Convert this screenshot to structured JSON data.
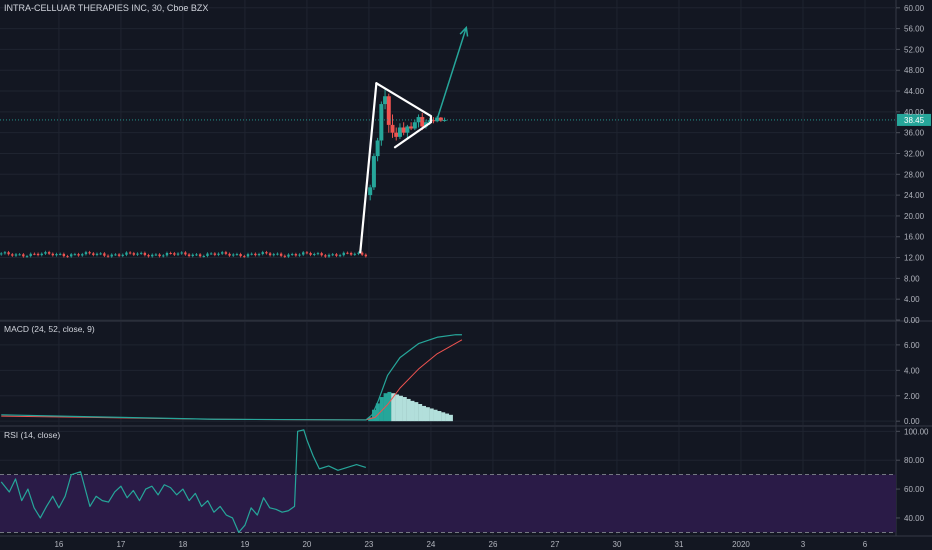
{
  "chart_data": [
    {
      "type": "line",
      "panel": "price",
      "title": "INTRA-CELLUAR THERAPIES INC, 30, Cboe BZX",
      "y_ticks": [
        "60.00",
        "56.00",
        "52.00",
        "48.00",
        "44.00",
        "40.00",
        "36.00",
        "32.00",
        "28.00",
        "24.00",
        "20.00",
        "16.00",
        "12.00",
        "8.00",
        "4.00",
        "0.00"
      ],
      "y_tick_values": [
        60,
        56,
        52,
        48,
        44,
        40,
        36,
        32,
        28,
        24,
        20,
        16,
        12,
        8,
        4,
        0
      ],
      "ylim": [
        0,
        61.5
      ],
      "x_ticks": [
        "16",
        "17",
        "18",
        "19",
        "20",
        "23",
        "24",
        "26",
        "27",
        "30",
        "31",
        "2020",
        "3",
        "6"
      ],
      "x_tick_positions": [
        0.5,
        1.5,
        2.5,
        3.5,
        4.5,
        5.5,
        6.5,
        7.5,
        8.5,
        9.5,
        10.5,
        11.5,
        12.5,
        13.5
      ],
      "xlim": [
        -0.45,
        14.0
      ],
      "last_price": 38.45,
      "last_price_label": "38.45",
      "colors": {
        "up": "#26a69a",
        "down": "#ef5350",
        "accent": "#26a69a",
        "pattern": "#ffffff"
      },
      "annotations": {
        "flagpole": [
          [
            5.36,
            13.0
          ],
          [
            5.62,
            45.5
          ]
        ],
        "pennant_upper": [
          [
            5.62,
            45.5
          ],
          [
            6.5,
            39.2
          ]
        ],
        "pennant_lower": [
          [
            5.92,
            33.2
          ],
          [
            6.5,
            38.0
          ]
        ],
        "breakout_arrow": [
          [
            6.6,
            38.6
          ],
          [
            7.07,
            56.2
          ]
        ]
      },
      "candles_pre": {
        "x_start": -0.43,
        "x_end": 5.45,
        "count": 100,
        "base": 12.6
      },
      "candles_post": [
        {
          "x": 5.52,
          "o": 24.0,
          "h": 26.0,
          "l": 23.0,
          "c": 25.5
        },
        {
          "x": 5.58,
          "o": 25.5,
          "h": 32.0,
          "l": 25.0,
          "c": 31.5
        },
        {
          "x": 5.64,
          "o": 31.5,
          "h": 35.0,
          "l": 30.5,
          "c": 34.5
        },
        {
          "x": 5.7,
          "o": 34.5,
          "h": 42.0,
          "l": 33.5,
          "c": 41.5
        },
        {
          "x": 5.76,
          "o": 41.5,
          "h": 44.5,
          "l": 40.5,
          "c": 43.0
        },
        {
          "x": 5.82,
          "o": 43.0,
          "h": 43.5,
          "l": 36.0,
          "c": 37.5
        },
        {
          "x": 5.88,
          "o": 37.5,
          "h": 39.5,
          "l": 35.0,
          "c": 36.0
        },
        {
          "x": 5.94,
          "o": 36.0,
          "h": 37.0,
          "l": 34.5,
          "c": 35.2
        },
        {
          "x": 6.0,
          "o": 35.2,
          "h": 37.8,
          "l": 34.8,
          "c": 37.0
        },
        {
          "x": 6.06,
          "o": 37.0,
          "h": 38.0,
          "l": 35.5,
          "c": 36.0
        },
        {
          "x": 6.12,
          "o": 36.0,
          "h": 37.5,
          "l": 35.0,
          "c": 37.2
        },
        {
          "x": 6.18,
          "o": 37.2,
          "h": 38.0,
          "l": 36.5,
          "c": 36.8
        },
        {
          "x": 6.24,
          "o": 36.8,
          "h": 38.5,
          "l": 36.5,
          "c": 38.0
        },
        {
          "x": 6.3,
          "o": 38.0,
          "h": 39.5,
          "l": 37.0,
          "c": 39.0
        },
        {
          "x": 6.36,
          "o": 39.0,
          "h": 39.8,
          "l": 36.5,
          "c": 37.2
        },
        {
          "x": 6.42,
          "o": 37.2,
          "h": 38.5,
          "l": 36.8,
          "c": 38.0
        },
        {
          "x": 6.48,
          "o": 38.0,
          "h": 38.8,
          "l": 37.5,
          "c": 38.4
        },
        {
          "x": 6.54,
          "o": 38.4,
          "h": 39.0,
          "l": 37.8,
          "c": 38.2
        },
        {
          "x": 6.6,
          "o": 38.2,
          "h": 39.2,
          "l": 38.0,
          "c": 38.9
        },
        {
          "x": 6.66,
          "o": 38.9,
          "h": 39.0,
          "l": 38.1,
          "c": 38.3
        },
        {
          "x": 6.72,
          "o": 38.3,
          "h": 38.9,
          "l": 38.1,
          "c": 38.45
        }
      ]
    },
    {
      "type": "bar",
      "panel": "macd",
      "title": "MACD (24, 52, close, 9)",
      "y_ticks": [
        "6.00",
        "4.00",
        "2.00",
        "0.00"
      ],
      "y_tick_values": [
        6,
        4,
        2,
        0
      ],
      "ylim": [
        -0.3,
        7.8
      ],
      "colors": {
        "macd": "#26a69a",
        "signal": "#ef5350",
        "hist_up": "#26a69a",
        "hist_fade": "#b2dfdb"
      },
      "macd_line": [
        [
          -0.43,
          0.5
        ],
        [
          1.0,
          0.35
        ],
        [
          3.0,
          0.15
        ],
        [
          5.45,
          0.1
        ],
        [
          5.55,
          0.5
        ],
        [
          5.65,
          1.6
        ],
        [
          5.8,
          3.6
        ],
        [
          6.0,
          5.0
        ],
        [
          6.3,
          6.1
        ],
        [
          6.6,
          6.6
        ],
        [
          6.9,
          6.8
        ],
        [
          7.0,
          6.8
        ]
      ],
      "signal_line": [
        [
          -0.43,
          0.4
        ],
        [
          1.0,
          0.3
        ],
        [
          3.0,
          0.15
        ],
        [
          5.45,
          0.1
        ],
        [
          5.6,
          0.3
        ],
        [
          5.8,
          1.3
        ],
        [
          6.0,
          2.6
        ],
        [
          6.3,
          4.1
        ],
        [
          6.6,
          5.3
        ],
        [
          7.0,
          6.4
        ]
      ],
      "histogram": [
        0.3,
        0.9,
        1.4,
        1.9,
        2.2,
        2.3,
        2.2,
        2.1,
        2.0,
        1.9,
        1.75,
        1.6,
        1.5,
        1.35,
        1.2,
        1.1,
        1.0,
        0.9,
        0.8,
        0.7,
        0.6,
        0.5
      ],
      "hist_x_start": 5.52,
      "hist_x_step": 0.062
    },
    {
      "type": "line",
      "panel": "rsi",
      "title": "RSI (14, close)",
      "y_ticks": [
        "100.00",
        "80.00",
        "60.00",
        "40.00"
      ],
      "y_tick_values": [
        100,
        80,
        60,
        40
      ],
      "ylim": [
        27.5,
        103
      ],
      "bands": {
        "upper": 70,
        "lower": 30
      },
      "colors": {
        "line": "#26a69a",
        "band_fill": "#2a1b47",
        "band_line": "#9598a1"
      },
      "rsi_line": [
        [
          -0.43,
          65
        ],
        [
          -0.3,
          58
        ],
        [
          -0.2,
          67
        ],
        [
          -0.1,
          52
        ],
        [
          0.0,
          60
        ],
        [
          0.1,
          47
        ],
        [
          0.2,
          40
        ],
        [
          0.3,
          48
        ],
        [
          0.4,
          55
        ],
        [
          0.5,
          47
        ],
        [
          0.6,
          55
        ],
        [
          0.7,
          70
        ],
        [
          0.85,
          72
        ],
        [
          1.0,
          48
        ],
        [
          1.1,
          55
        ],
        [
          1.2,
          52
        ],
        [
          1.3,
          51
        ],
        [
          1.4,
          58
        ],
        [
          1.5,
          62
        ],
        [
          1.6,
          54
        ],
        [
          1.7,
          59
        ],
        [
          1.8,
          52
        ],
        [
          1.9,
          60
        ],
        [
          2.0,
          62
        ],
        [
          2.1,
          56
        ],
        [
          2.2,
          63
        ],
        [
          2.3,
          61
        ],
        [
          2.4,
          56
        ],
        [
          2.5,
          60
        ],
        [
          2.6,
          52
        ],
        [
          2.7,
          57
        ],
        [
          2.8,
          48
        ],
        [
          2.9,
          52
        ],
        [
          3.0,
          44
        ],
        [
          3.1,
          48
        ],
        [
          3.2,
          42
        ],
        [
          3.3,
          40
        ],
        [
          3.4,
          30
        ],
        [
          3.5,
          35
        ],
        [
          3.6,
          47
        ],
        [
          3.7,
          42
        ],
        [
          3.8,
          54
        ],
        [
          3.9,
          47
        ],
        [
          4.0,
          46
        ],
        [
          4.1,
          44
        ],
        [
          4.2,
          45
        ],
        [
          4.3,
          48
        ],
        [
          4.35,
          100
        ],
        [
          4.45,
          101
        ],
        [
          4.5,
          94
        ],
        [
          4.6,
          83
        ],
        [
          4.7,
          74
        ],
        [
          4.85,
          76
        ],
        [
          5.0,
          73
        ],
        [
          5.15,
          75
        ],
        [
          5.3,
          77
        ],
        [
          5.45,
          75
        ]
      ]
    }
  ]
}
